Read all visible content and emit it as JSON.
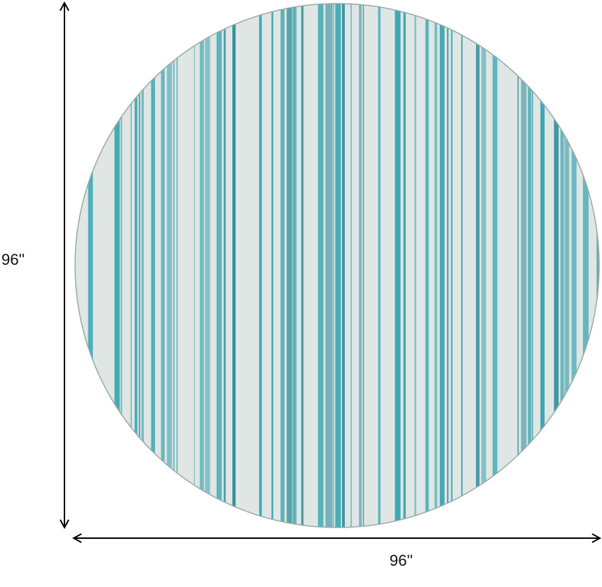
{
  "dimensions": {
    "height_label": "96''",
    "width_label": "96''"
  },
  "rug": {
    "shape": "round",
    "pattern": "vertical-stripes",
    "colors": {
      "base": "#dfe6e4",
      "stripe": "#3aa6b2",
      "stripe_dark": "#2c8c98"
    }
  },
  "arrow_color": "#000000"
}
